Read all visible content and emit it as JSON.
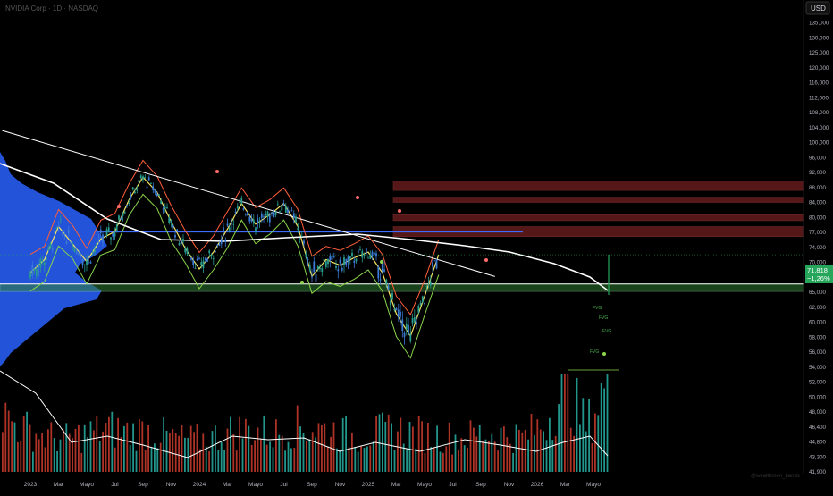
{
  "header": {
    "symbol_text": "NVIDIA Corp · 1D · NASDAQ"
  },
  "currency_button": "USD",
  "price_tag": {
    "price": "71,818",
    "change": "−1,26%"
  },
  "watermark": "@wealthmen_bands",
  "colors": {
    "background": "#000000",
    "axis_text": "#b2b5be",
    "trendline": "#ffffff",
    "volume_profile": "#2962ff",
    "support_zone": "#2e7d32",
    "resistance_zone": "#9c2a2a",
    "blue_level": "#3f6bff",
    "candle_up": "#26a69a",
    "candle_down": "#ef5350",
    "ma_fast": "#f5e663",
    "band_upper": "#ff5e3a",
    "band_lower": "#8bd64b",
    "fvg_label": "#4caf50"
  },
  "chart_data": {
    "type": "line",
    "title": "",
    "price_axis": {
      "ticks": [
        "140,000",
        "135,000",
        "130,000",
        "125,000",
        "120,000",
        "116,000",
        "112,000",
        "108,000",
        "104,000",
        "100,000",
        "96,000",
        "92,000",
        "88,000",
        "84,000",
        "80,000",
        "77,000",
        "74,000",
        "70,000",
        "68,000",
        "65,000",
        "62,000",
        "60,000",
        "58,000",
        "56,000",
        "54,000",
        "52,000",
        "50,000",
        "48,000",
        "46,400",
        "44,800",
        "43,300",
        "41,900"
      ],
      "scale": "log",
      "range": [
        41900,
        140000
      ]
    },
    "time_axis": {
      "ticks": [
        "2023",
        "Mar",
        "Mayo",
        "Jul",
        "Sep",
        "Nov",
        "2024",
        "Mar",
        "Mayo",
        "Jul",
        "Sep",
        "Nov",
        "2025",
        "Mar",
        "Mayo",
        "Jul",
        "Sep",
        "Nov",
        "2026",
        "Mar",
        "Mayo"
      ]
    },
    "price_series": {
      "name": "",
      "dates": [
        "2023-01",
        "2023-02",
        "2023-03",
        "2023-04",
        "2023-05",
        "2023-06",
        "2023-07",
        "2023-08",
        "2023-09",
        "2023-10",
        "2023-11",
        "2023-12",
        "2024-01",
        "2024-02",
        "2024-03",
        "2024-04",
        "2024-05",
        "2024-06",
        "2024-07",
        "2024-08",
        "2024-09",
        "2024-10",
        "2024-11",
        "2024-12",
        "2025-01",
        "2025-02",
        "2025-03",
        "2025-04",
        "2025-05",
        "2025-06"
      ],
      "values": [
        68500,
        70500,
        78000,
        74500,
        70000,
        75500,
        77000,
        84500,
        90500,
        86500,
        79000,
        73500,
        69000,
        72500,
        77500,
        83500,
        78500,
        80500,
        83500,
        78000,
        68000,
        70500,
        69500,
        71000,
        72500,
        68500,
        61000,
        58000,
        64000,
        71800
      ]
    },
    "volume_series": {
      "name": "",
      "values": [
        60,
        46,
        38,
        35,
        40,
        46,
        42,
        44,
        37,
        34,
        36,
        43,
        45,
        40,
        48,
        46,
        43,
        38,
        42,
        44,
        40,
        38,
        36,
        41,
        40,
        37,
        52,
        90,
        48,
        95
      ]
    },
    "horizontal_zones": [
      {
        "type": "resistance",
        "from": 87000,
        "to": 89500
      },
      {
        "type": "resistance",
        "from": 83800,
        "to": 85200
      },
      {
        "type": "resistance",
        "from": 79200,
        "to": 80500
      },
      {
        "type": "resistance",
        "from": 76000,
        "to": 78000
      },
      {
        "type": "support",
        "from": 65000,
        "to": 66500
      }
    ],
    "horizontal_levels": [
      77000
    ],
    "trendline": {
      "from": [
        "2022-11",
        103000
      ],
      "to": [
        "2025-10",
        68000
      ]
    },
    "annotations": [
      "FVG",
      "FVG",
      "FVG",
      "FVG"
    ],
    "grid": false
  }
}
